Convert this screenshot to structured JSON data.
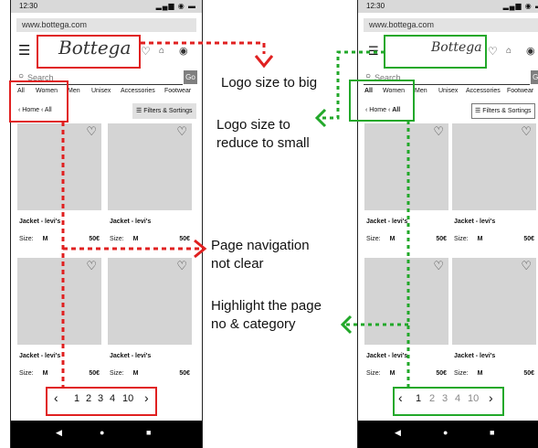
{
  "status_bar": {
    "time": "12:30",
    "icons": "signal-wifi-battery"
  },
  "browser": {
    "url": "www.bottega.com"
  },
  "header": {
    "logo": "Bottega",
    "icons": [
      "menu-icon",
      "heart-icon",
      "bag-icon",
      "user-icon"
    ]
  },
  "search": {
    "placeholder": "Search",
    "button": "Go"
  },
  "categories": [
    "All",
    "Women",
    "Men",
    "Unisex",
    "Accessories",
    "Footwear"
  ],
  "breadcrumb": [
    "Home",
    "All"
  ],
  "filters_label": "Filters & Sortings",
  "products": [
    {
      "name": "Jacket - levi's",
      "size_label": "Size:",
      "size": "M",
      "price": "50€"
    },
    {
      "name": "Jacket - levi's",
      "size_label": "Size:",
      "size": "M",
      "price": "50€"
    },
    {
      "name": "Jacket - levi's",
      "size_label": "Size:",
      "size": "M",
      "price": "50€"
    },
    {
      "name": "Jacket - levi's",
      "size_label": "Size:",
      "size": "M",
      "price": "50€"
    }
  ],
  "pagination": {
    "pages": [
      "1",
      "2",
      "3",
      "4",
      "10"
    ],
    "current": "1"
  },
  "android_nav": [
    "back-icon",
    "home-icon",
    "recents-icon"
  ],
  "annotations": {
    "logo_big": "Logo size to big",
    "logo_small": "Logo size to\nreduce to small",
    "page_nav": "Page navigation\nnot clear",
    "highlight": "Highlight the page\nno & category"
  },
  "colors": {
    "problem": "#e02020",
    "solution": "#22a82a",
    "image_placeholder": "#d4d4d4"
  }
}
